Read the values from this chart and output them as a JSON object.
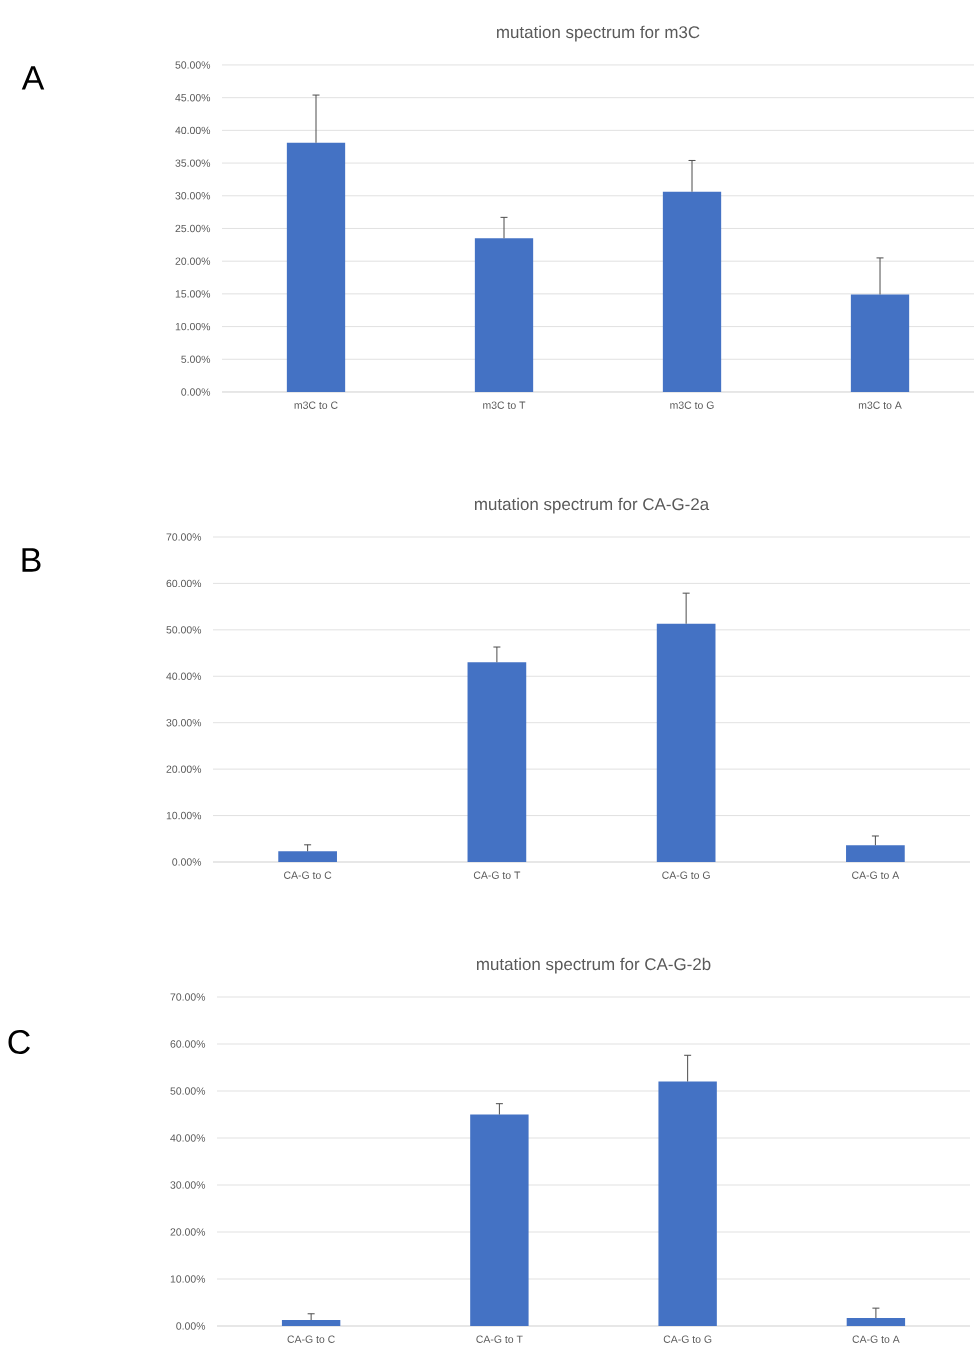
{
  "chart_data": [
    {
      "type": "bar",
      "title": "mutation spectrum for m3C",
      "annotations": [
        "A"
      ],
      "categories": [
        "m3C to C",
        "m3C to T",
        "m3C to G",
        "m3C to A"
      ],
      "values": [
        38.1,
        23.5,
        30.6,
        14.9
      ],
      "errors": [
        [
          38.1,
          45.4
        ],
        [
          23.5,
          26.7
        ],
        [
          30.6,
          35.4
        ],
        [
          14.9,
          20.5
        ]
      ],
      "color": "#4472c4",
      "ylim": [
        0,
        50
      ],
      "yticks": [
        {
          "value": 0,
          "label": "0.00%"
        },
        {
          "value": 5,
          "label": "5.00%"
        },
        {
          "value": 10,
          "label": "10.00%"
        },
        {
          "value": 15,
          "label": "15.00%"
        },
        {
          "value": 20,
          "label": "20.00%"
        },
        {
          "value": 25,
          "label": "25.00%"
        },
        {
          "value": 30,
          "label": "30.00%"
        },
        {
          "value": 35,
          "label": "35.00%"
        },
        {
          "value": 40,
          "label": "40.00%"
        },
        {
          "value": 45,
          "label": "45.00%"
        },
        {
          "value": 50,
          "label": "50.00%"
        }
      ],
      "grid": "y"
    },
    {
      "type": "bar",
      "title": "mutation spectrum for CA-G-2a",
      "annotations": [
        "B"
      ],
      "categories": [
        "CA-G to C",
        "CA-G to T",
        "CA-G to G",
        "CA-G to A"
      ],
      "values": [
        2.3,
        43.0,
        51.3,
        3.6
      ],
      "errors": [
        [
          2.3,
          3.7
        ],
        [
          43.0,
          46.3
        ],
        [
          51.3,
          57.9
        ],
        [
          3.6,
          5.6
        ]
      ],
      "color": "#4472c4",
      "ylim": [
        0,
        70
      ],
      "yticks": [
        {
          "value": 0,
          "label": "0.00%"
        },
        {
          "value": 10,
          "label": "10.00%"
        },
        {
          "value": 20,
          "label": "20.00%"
        },
        {
          "value": 30,
          "label": "30.00%"
        },
        {
          "value": 40,
          "label": "40.00%"
        },
        {
          "value": 50,
          "label": "50.00%"
        },
        {
          "value": 60,
          "label": "60.00%"
        },
        {
          "value": 70,
          "label": "70.00%"
        }
      ],
      "grid": "y"
    },
    {
      "type": "bar",
      "title": "mutation spectrum for CA-G-2b",
      "annotations": [
        "C"
      ],
      "categories": [
        "CA-G to C",
        "CA-G to T",
        "CA-G to G",
        "CA-G to A"
      ],
      "values": [
        1.3,
        45.0,
        52.0,
        1.7
      ],
      "errors": [
        [
          1.3,
          2.6
        ],
        [
          45.0,
          47.3
        ],
        [
          52.0,
          57.6
        ],
        [
          1.7,
          3.8
        ]
      ],
      "color": "#4472c4",
      "ylim": [
        0,
        70
      ],
      "yticks": [
        {
          "value": 0,
          "label": "0.00%"
        },
        {
          "value": 10,
          "label": "10.00%"
        },
        {
          "value": 20,
          "label": "20.00%"
        },
        {
          "value": 30,
          "label": "30.00%"
        },
        {
          "value": 40,
          "label": "40.00%"
        },
        {
          "value": 50,
          "label": "50.00%"
        },
        {
          "value": 60,
          "label": "60.00%"
        },
        {
          "value": 70,
          "label": "70.00%"
        }
      ],
      "grid": "y"
    }
  ]
}
